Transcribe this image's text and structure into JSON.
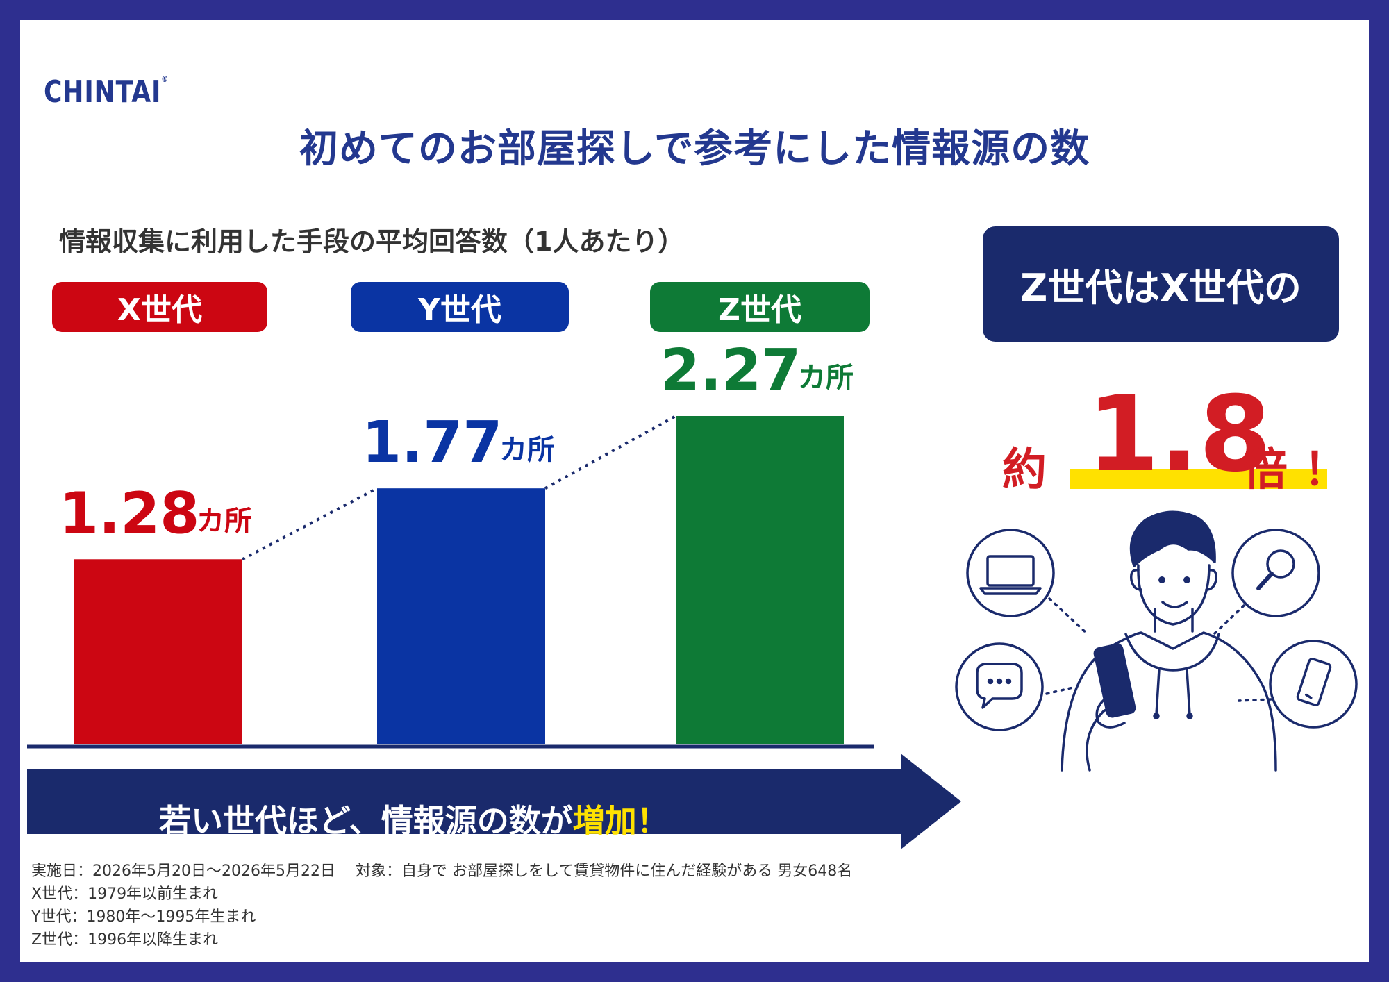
{
  "logo": {
    "text": "CHINTAI",
    "mark": "®"
  },
  "title": "初めてのお部屋探しで参考にした情報源の数",
  "colors": {
    "x": "#cc0612",
    "y": "#0a34a3",
    "z": "#0e7a36",
    "navy": "#1a2a6c",
    "highlight": "#ffe100",
    "accent_red": "#d21d24"
  },
  "chart_data": {
    "type": "bar",
    "title": "情報収集に利用した手段の平均回答数（1人あたり）",
    "categories": [
      "X世代",
      "Y世代",
      "Z世代"
    ],
    "values": [
      1.28,
      1.77,
      2.27
    ],
    "value_labels": [
      "1.28",
      "1.77",
      "2.27"
    ],
    "unit": "カ所",
    "ylim": [
      0,
      2.27
    ],
    "trend_line": "dotted",
    "grid": false
  },
  "arrow": {
    "text_main": "若い世代ほど、情報源の数が",
    "text_highlight": "増加！"
  },
  "callout": {
    "box_text": "Z世代はX世代の",
    "prefix": "約",
    "number": "1.8",
    "suffix": "倍",
    "exclaim": "！"
  },
  "illustration": {
    "icons": [
      "laptop-icon",
      "search-icon",
      "chat-icon",
      "smartphone-icon"
    ],
    "person": "person-with-smartphone"
  },
  "notes": [
    "実施日：2026年5月20日〜2026年5月22日　 対象：自身で お部屋探しをして賃貸物件に住んだ経験がある 男女648名",
    "X世代：1979年以前生まれ",
    "Y世代：1980年〜1995年生まれ",
    "Z世代：1996年以降生まれ"
  ]
}
